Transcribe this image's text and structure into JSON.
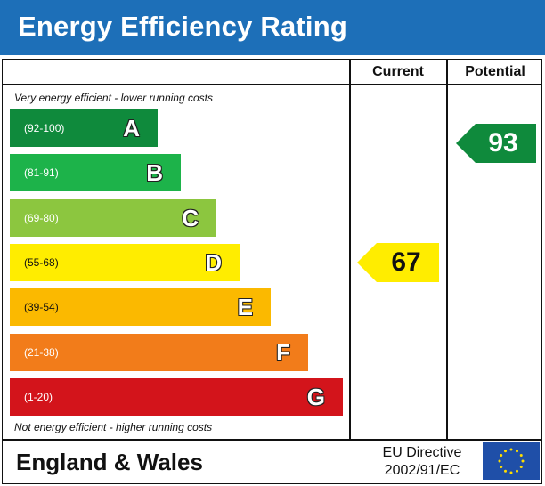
{
  "title": "Energy Efficiency Rating",
  "columns": {
    "current": "Current",
    "potential": "Potential"
  },
  "notes": {
    "top": "Very energy efficient - lower running costs",
    "bottom": "Not energy efficient - higher running costs"
  },
  "footer": {
    "region": "England & Wales",
    "directive_line1": "EU Directive",
    "directive_line2": "2002/91/EC",
    "flag_icon": "eu-flag-icon"
  },
  "chart_data": {
    "type": "bar",
    "categories": [
      "A",
      "B",
      "C",
      "D",
      "E",
      "F",
      "G"
    ],
    "ranges": [
      "(92-100)",
      "(81-91)",
      "(69-80)",
      "(55-68)",
      "(39-54)",
      "(21-38)",
      "(1-20)"
    ],
    "colors": [
      "#0f8a3c",
      "#1db34a",
      "#8cc63f",
      "#ffed00",
      "#fbb900",
      "#f27c1a",
      "#d3141b"
    ],
    "current": {
      "value": "67",
      "band": "D",
      "color": "#ffed00"
    },
    "potential": {
      "value": "93",
      "band": "A",
      "color": "#0f8a3c"
    }
  }
}
